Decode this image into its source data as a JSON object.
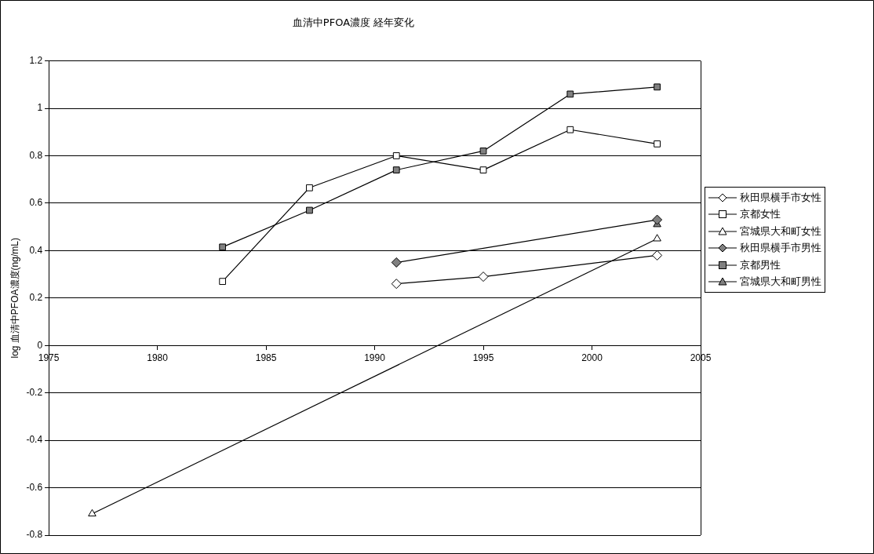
{
  "chart_data": {
    "type": "line",
    "title": "血清中PFOA濃度 経年変化",
    "ylabel": "log 血清中PFOA濃度(ng/mL)",
    "xlim": [
      1975,
      2005
    ],
    "xticks": [
      1975,
      1980,
      1985,
      1990,
      1995,
      2000,
      2005
    ],
    "ylim": [
      -0.8,
      1.2
    ],
    "yticks": [
      -0.8,
      -0.6,
      -0.4,
      -0.2,
      0,
      0.2,
      0.4,
      0.6,
      0.8,
      1,
      1.2
    ],
    "grid": "y",
    "legend": "right",
    "series": [
      {
        "name": "秋田県横手市女性",
        "color": "#ffffff",
        "marker": "diamond",
        "x": [
          1991,
          1995,
          2003
        ],
        "values": [
          0.26,
          0.29,
          0.38
        ]
      },
      {
        "name": "京都女性",
        "color": "#ffffff",
        "marker": "square",
        "x": [
          1983,
          1987,
          1991,
          1995,
          1999,
          2003
        ],
        "values": [
          0.27,
          0.665,
          0.8,
          0.74,
          0.91,
          0.85
        ]
      },
      {
        "name": "宮城県大和町女性",
        "color": "#ffffff",
        "marker": "triangle",
        "x": [
          1977,
          2003
        ],
        "values": [
          -0.71,
          0.45
        ]
      },
      {
        "name": "秋田県横手市男性",
        "color": "#808080",
        "marker": "diamond",
        "x": [
          1991,
          2003
        ],
        "values": [
          0.35,
          0.53
        ]
      },
      {
        "name": "京都男性",
        "color": "#808080",
        "marker": "square",
        "x": [
          1983,
          1987,
          1991,
          1995,
          1999,
          2003
        ],
        "values": [
          0.415,
          0.57,
          0.74,
          0.82,
          1.06,
          1.09
        ]
      },
      {
        "name": "宮城県大和町男性",
        "color": "#808080",
        "marker": "triangle",
        "x": [
          2003
        ],
        "values": [
          0.51
        ]
      }
    ]
  }
}
